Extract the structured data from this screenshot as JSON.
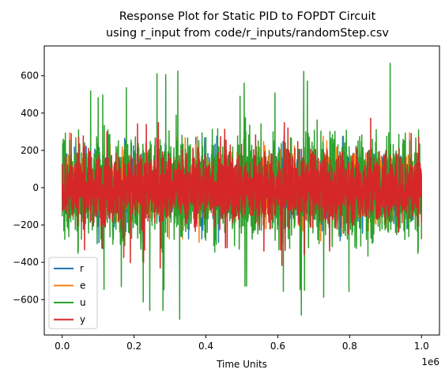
{
  "chart_data": {
    "type": "line",
    "title": [
      "Response Plot for Static PID to FOPDT Circuit",
      "using r_input from code/r_inputs/randomStep.csv"
    ],
    "xlabel": "Time Units",
    "ylabel": "",
    "x_offset_label": "1e6",
    "xlim": [
      -50000,
      1050000
    ],
    "ylim": [
      -790,
      760
    ],
    "x_ticks": [
      0,
      0.2,
      0.4,
      0.6,
      0.8,
      1.0
    ],
    "x_tick_labels": [
      "0.0",
      "0.2",
      "0.4",
      "0.6",
      "0.8",
      "1.0"
    ],
    "y_ticks": [
      -600,
      -400,
      -200,
      0,
      200,
      400,
      600
    ],
    "y_tick_labels": [
      "−600",
      "−400",
      "−200",
      "0",
      "200",
      "400",
      "600"
    ],
    "x_range": [
      0,
      1000000
    ],
    "grid": false,
    "legend_position": "lower-left",
    "series": [
      {
        "name": "r",
        "color": "#1f77b4",
        "typical_amplitude": 150,
        "peak_max": 300,
        "peak_min": -300
      },
      {
        "name": "e",
        "color": "#ff7f0e",
        "typical_amplitude": 150,
        "peak_max": 300,
        "peak_min": -300
      },
      {
        "name": "u",
        "color": "#2ca02c",
        "typical_amplitude": 250,
        "peak_max": 680,
        "peak_min": -720
      },
      {
        "name": "y",
        "color": "#d62728",
        "typical_amplitude": 170,
        "peak_max": 380,
        "peak_min": -440
      }
    ]
  }
}
